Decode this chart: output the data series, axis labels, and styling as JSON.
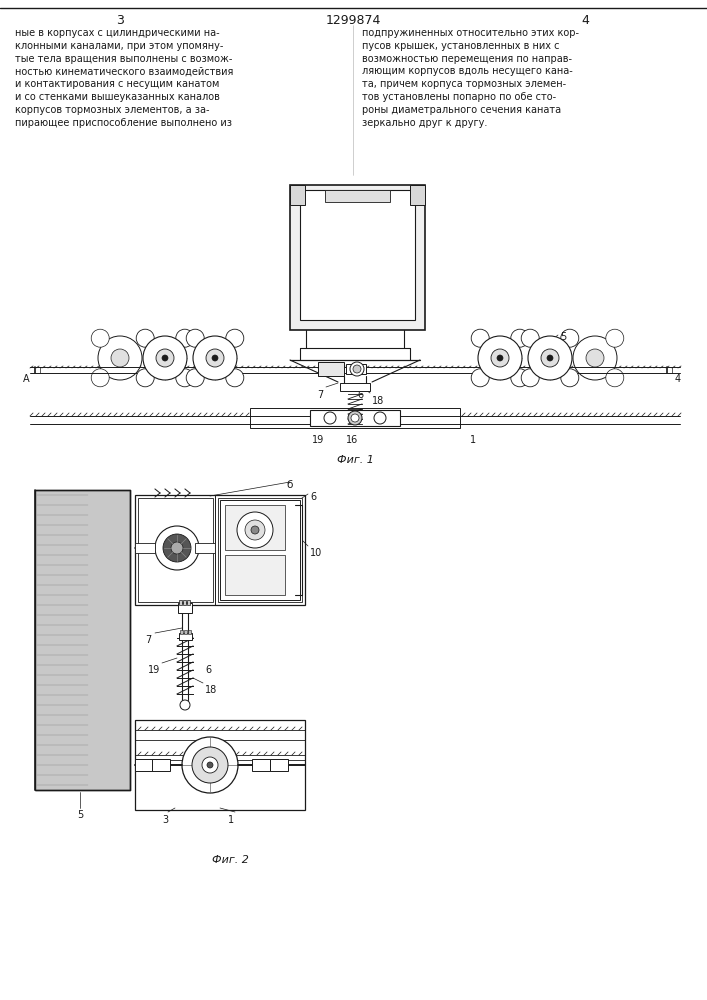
{
  "page_number_left": "3",
  "page_number_center": "1299874",
  "page_number_right": "4",
  "bg_color": "#ffffff",
  "line_color": "#1a1a1a",
  "fig1_caption": "Фиг. 1",
  "fig2_caption": "Фиг. 2",
  "text_left": "ные в корпусах с цилиндрическими на-\nклонными каналами, при этом упомяну-\nтые тела вращения выполнены с возмож-\nностью кинематического взаимодействия\nи контактирования с несущим канатом\nи со стенками вышеуказанных каналов\nкорпусов тормозных элементов, а за-\nпирающее приспособление выполнено из",
  "text_right": "подпружиненных относительно этих кор-\nпусов крышек, установленных в них с\nвозможностью перемещения по направ-\nляющим корпусов вдоль несущего кана-\nта, причем корпуса тормозных элемен-\nтов установлены попарно по обе сто-\nроны диаметрального сечения каната\nзеркально друг к другу."
}
